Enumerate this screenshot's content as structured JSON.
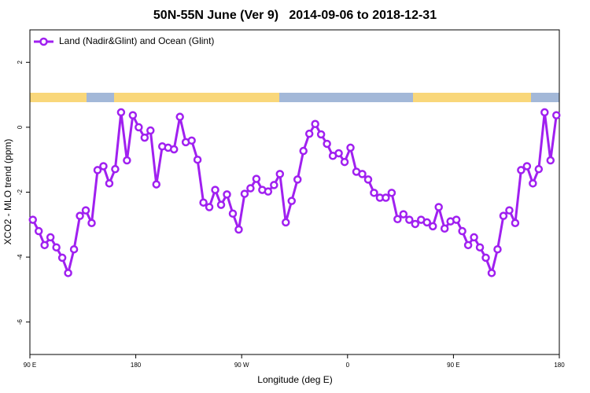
{
  "chart_data": {
    "type": "line",
    "title": "50N-55N June (Ver 9)   2014-09-06 to 2018-12-31",
    "x_label": "Longitude (deg E)",
    "y_label": "XCO2 - MLO trend (ppm)",
    "xlim": [
      90,
      540
    ],
    "xticks": [
      {
        "value": 90,
        "label": "90 E"
      },
      180,
      {
        "value": 270,
        "label": "90 W"
      },
      {
        "value": 360,
        "label": "0"
      },
      {
        "value": 450,
        "label": "90 E"
      },
      {
        "value": 540,
        "label": "180"
      }
    ],
    "ylim": [
      -7,
      3
    ],
    "yticks": [
      -6,
      -4,
      -2,
      0,
      2
    ],
    "legend": "top-left",
    "x": [
      92.5,
      97.5,
      102.5,
      107.5,
      112.5,
      117.5,
      122.5,
      127.5,
      132.5,
      137.5,
      142.5,
      147.5,
      152.5,
      157.5,
      162.5,
      167.5,
      172.5,
      177.5,
      182.5,
      187.5,
      192.5,
      197.5,
      202.5,
      207.5,
      212.5,
      217.5,
      222.5,
      227.5,
      232.5,
      237.5,
      242.5,
      247.5,
      252.5,
      257.5,
      262.5,
      267.5,
      272.5,
      277.5,
      282.5,
      287.5,
      292.5,
      297.5,
      302.5,
      307.5,
      312.5,
      317.5,
      322.5,
      327.5,
      332.5,
      337.5,
      342.5,
      347.5,
      352.5,
      357.5,
      362.5,
      367.5,
      372.5,
      377.5,
      382.5,
      387.5,
      392.5,
      397.5,
      402.5,
      407.5,
      412.5,
      417.5,
      422.5,
      427.5,
      432.5,
      437.5,
      442.5,
      447.5,
      452.5,
      457.5,
      462.5,
      467.5,
      472.5,
      477.5,
      482.5,
      487.5,
      492.5,
      497.5,
      502.5,
      507.5,
      512.5,
      517.5,
      522.5,
      527.5,
      532.5,
      537.5
    ],
    "series": [
      {
        "name": "Land (Nadir&Glint) and Ocean (Glint)",
        "color": "#a020f0",
        "values": [
          -2.85,
          -3.2,
          -3.63,
          -3.39,
          -3.7,
          -4.02,
          -4.49,
          -3.76,
          -2.73,
          -2.56,
          -2.95,
          -1.32,
          -1.2,
          -1.73,
          -1.29,
          0.46,
          -1.02,
          0.37,
          0,
          -0.32,
          -0.1,
          -1.76,
          -0.59,
          -0.63,
          -0.68,
          0.32,
          -0.46,
          -0.41,
          -1.0,
          -2.32,
          -2.46,
          -1.93,
          -2.39,
          -2.07,
          -2.66,
          -3.15,
          -2.05,
          -1.88,
          -1.59,
          -1.93,
          -1.98,
          -1.78,
          -1.44,
          -2.93,
          -2.27,
          -1.61,
          -0.73,
          -0.2,
          0.1,
          -0.22,
          -0.51,
          -0.88,
          -0.8,
          -1.07,
          -0.63,
          -1.37,
          -1.44,
          -1.61,
          -2.02,
          -2.17,
          -2.17,
          -2.02,
          -2.83,
          -2.68,
          -2.85,
          -2.98,
          -2.85,
          -2.93,
          -3.05,
          -2.46,
          -3.12,
          -2.9,
          -2.85,
          -3.2,
          -3.63,
          -3.39,
          -3.7,
          -4.02,
          -4.49,
          -3.76,
          -2.73,
          -2.56,
          -2.95,
          -1.32,
          -1.2,
          -1.73,
          -1.29,
          0.46,
          -1.02,
          0.37
        ]
      }
    ]
  }
}
